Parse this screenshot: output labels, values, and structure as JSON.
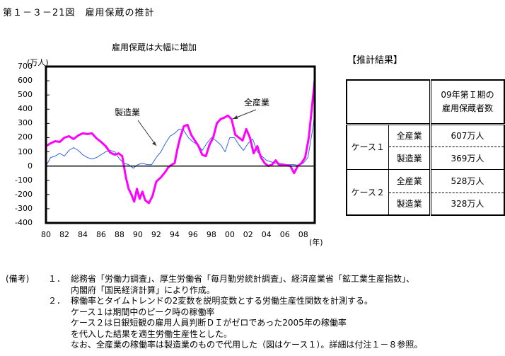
{
  "figure": {
    "title": "第１－３－21図　雇用保蔵の推計"
  },
  "chart_data": {
    "type": "line",
    "title": "雇用保蔵は大幅に増加",
    "ylabel": "(万人)",
    "xlabel": "(年)",
    "ylim": [
      -400,
      700
    ],
    "yticks": [
      700,
      600,
      500,
      400,
      300,
      200,
      100,
      0,
      -100,
      -200,
      -300,
      -400
    ],
    "xticks": [
      "80",
      "82",
      "84",
      "86",
      "88",
      "90",
      "92",
      "94",
      "96",
      "98",
      "00",
      "02",
      "04",
      "06",
      "08"
    ],
    "xrange": [
      1980,
      2009.25
    ],
    "grid": false,
    "legend": "inline annotations with arrows",
    "annotations": [
      {
        "text": "製造業",
        "target_series": "製造業"
      },
      {
        "text": "全産業",
        "target_series": "全産業"
      }
    ],
    "series": [
      {
        "name": "全産業",
        "color": "#ff00ff",
        "width": 3,
        "x": [
          1980.0,
          1980.5,
          1981.0,
          1981.5,
          1982.0,
          1982.5,
          1983.0,
          1983.5,
          1984.0,
          1984.5,
          1985.0,
          1985.5,
          1986.0,
          1986.5,
          1987.0,
          1987.5,
          1987.9,
          1988.3,
          1988.7,
          1989.0,
          1989.3,
          1989.6,
          1989.9,
          1990.2,
          1990.5,
          1990.8,
          1991.2,
          1991.6,
          1992.0,
          1992.5,
          1993.0,
          1993.3,
          1993.7,
          1994.0,
          1994.3,
          1994.6,
          1995.0,
          1995.4,
          1995.8,
          1996.2,
          1996.6,
          1997.0,
          1997.4,
          1997.8,
          1998.2,
          1998.6,
          1999.0,
          1999.4,
          1999.8,
          2000.2,
          2000.6,
          2001.0,
          2001.4,
          2001.8,
          2002.2,
          2002.6,
          2003.0,
          2003.4,
          2003.8,
          2004.2,
          2004.6,
          2005.0,
          2005.4,
          2005.8,
          2006.2,
          2006.6,
          2007.0,
          2007.4,
          2007.8,
          2008.2,
          2008.6,
          2009.0,
          2009.25
        ],
        "y": [
          140,
          160,
          175,
          170,
          200,
          210,
          190,
          215,
          230,
          225,
          230,
          195,
          170,
          140,
          95,
          80,
          90,
          70,
          -80,
          -160,
          -200,
          -250,
          -160,
          -230,
          -180,
          -240,
          -260,
          -210,
          -110,
          -80,
          -40,
          -10,
          10,
          20,
          120,
          200,
          280,
          290,
          220,
          180,
          140,
          80,
          70,
          150,
          200,
          300,
          330,
          340,
          355,
          330,
          220,
          200,
          180,
          260,
          200,
          90,
          140,
          60,
          20,
          0,
          10,
          40,
          5,
          10,
          5,
          0,
          -50,
          0,
          20,
          60,
          200,
          450,
          607
        ]
      },
      {
        "name": "製造業",
        "color": "#3366dd",
        "width": 1,
        "x": [
          1980.0,
          1980.5,
          1981.0,
          1981.5,
          1982.0,
          1982.5,
          1983.0,
          1983.5,
          1984.0,
          1984.5,
          1985.0,
          1985.5,
          1986.0,
          1986.5,
          1987.0,
          1987.5,
          1988.0,
          1988.5,
          1989.0,
          1989.5,
          1990.0,
          1990.5,
          1991.0,
          1991.5,
          1992.0,
          1992.5,
          1993.0,
          1993.5,
          1994.0,
          1994.5,
          1995.0,
          1995.5,
          1996.0,
          1996.5,
          1997.0,
          1997.5,
          1998.0,
          1998.5,
          1999.0,
          1999.5,
          2000.0,
          2000.5,
          2001.0,
          2001.5,
          2002.0,
          2002.5,
          2003.0,
          2003.5,
          2004.0,
          2004.5,
          2005.0,
          2005.5,
          2006.0,
          2006.5,
          2007.0,
          2007.5,
          2008.0,
          2008.5,
          2009.0,
          2009.25
        ],
        "y": [
          0,
          60,
          70,
          90,
          70,
          110,
          130,
          110,
          80,
          60,
          50,
          60,
          80,
          100,
          110,
          100,
          50,
          20,
          10,
          -15,
          10,
          20,
          10,
          10,
          60,
          100,
          160,
          210,
          230,
          260,
          250,
          200,
          170,
          150,
          110,
          160,
          200,
          180,
          150,
          100,
          200,
          200,
          150,
          110,
          160,
          190,
          100,
          70,
          40,
          30,
          20,
          20,
          10,
          10,
          10,
          5,
          20,
          60,
          250,
          369
        ]
      }
    ]
  },
  "results": {
    "title": "【推計結果】",
    "header": "09年第Ｉ期の\n雇用保蔵者数",
    "header_line1": "09年第Ｉ期の",
    "header_line2": "雇用保蔵者数",
    "cases": [
      {
        "case": "ケース１",
        "rows": [
          {
            "sector": "全産業",
            "value": "607万人"
          },
          {
            "sector": "製造業",
            "value": "369万人"
          }
        ]
      },
      {
        "case": "ケース２",
        "rows": [
          {
            "sector": "全産業",
            "value": "528万人"
          },
          {
            "sector": "製造業",
            "value": "328万人"
          }
        ]
      }
    ]
  },
  "notes": {
    "label": "(備考)",
    "items": [
      {
        "num": "１．",
        "lines": [
          "総務省「労働力調査」、厚生労働省「毎月勤労統計調査」、経済産業省「鉱工業生産指数」、",
          "内閣府「国民経済計算」により作成。"
        ]
      },
      {
        "num": "２．",
        "lines": [
          "稼働率とタイムトレンドの2変数を説明変数とする労働生産性関数を計測する。",
          "ケース１は期間中のピーク時の稼働率",
          "ケース２は日銀短観の雇用人員判断ＤＩがゼロであった2005年の稼働率",
          "を代入した結果を適生労働生産性とした。",
          "なお、全産業の稼働率は製造業のもので代用した（図はケース１）。詳細は付注１－８参照。"
        ]
      }
    ]
  }
}
